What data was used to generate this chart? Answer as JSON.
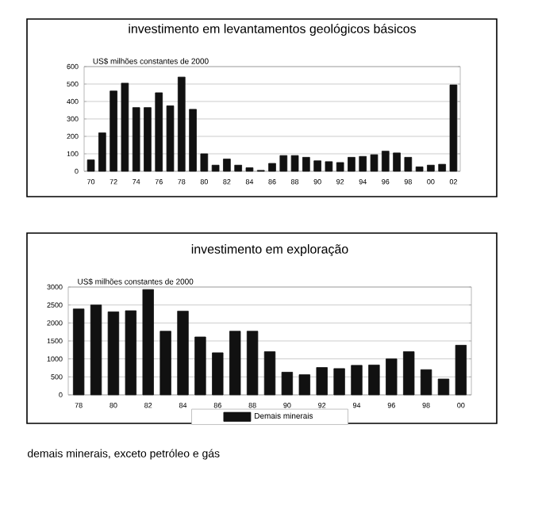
{
  "chart_data": [
    {
      "type": "bar",
      "title": "investimento em levantamentos geológicos básicos",
      "subtitle": "US$ milhões constantes de 2000",
      "categories": [
        "70",
        null,
        "72",
        null,
        "74",
        null,
        "76",
        null,
        "78",
        null,
        "80",
        null,
        "82",
        null,
        "84",
        null,
        "86",
        null,
        "88",
        null,
        "90",
        null,
        "92",
        null,
        "94",
        null,
        "96",
        null,
        "98",
        null,
        "00",
        null,
        "02"
      ],
      "values": [
        65,
        220,
        460,
        505,
        365,
        365,
        450,
        375,
        540,
        355,
        100,
        35,
        70,
        35,
        20,
        5,
        45,
        90,
        90,
        80,
        60,
        55,
        50,
        80,
        85,
        95,
        115,
        105,
        80,
        25,
        35,
        40,
        495
      ],
      "color": "#111111",
      "ylim": [
        0,
        600
      ],
      "yticks": [
        0,
        100,
        200,
        300,
        400,
        500,
        600
      ],
      "grid": "y"
    },
    {
      "type": "bar",
      "title": "investimento em exploração",
      "subtitle": "US$ milhões constantes de 2000",
      "categories": [
        "78",
        null,
        "80",
        null,
        "82",
        null,
        "84",
        null,
        "86",
        null,
        "88",
        null,
        "90",
        null,
        "92",
        null,
        "94",
        null,
        "96",
        null,
        "98",
        null,
        "00"
      ],
      "series": [
        {
          "name": "Demais minerais",
          "color": "#111111",
          "values": [
            2390,
            2500,
            2310,
            2340,
            2930,
            1770,
            2330,
            1610,
            1170,
            1770,
            1770,
            1200,
            630,
            560,
            760,
            730,
            820,
            830,
            1000,
            1200,
            700,
            440,
            1380
          ]
        }
      ],
      "ylim": [
        0,
        3000
      ],
      "yticks": [
        0,
        500,
        1000,
        1500,
        2000,
        2500,
        3000
      ],
      "grid": "y",
      "legend": "bottom",
      "annotations": [
        "demais minerais, exceto petróleo e gás"
      ]
    }
  ]
}
